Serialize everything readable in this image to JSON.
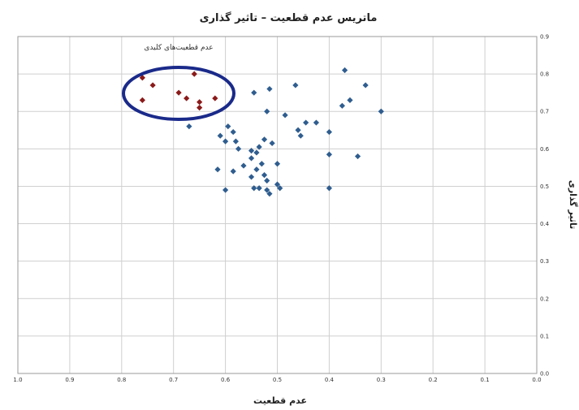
{
  "chart_data": {
    "type": "scatter",
    "title": "ماتریس عدم قطعیت – تاثیر گذاری",
    "xlabel": "عدم قطعیت",
    "ylabel": "تاثیر گذاری",
    "xlim": [
      1.0,
      0.0
    ],
    "ylim": [
      0.0,
      0.9
    ],
    "x_reversed": true,
    "grid": true,
    "y_axis_side": "right",
    "xticks": [
      "1.0",
      "0.9",
      "0.8",
      "0.7",
      "0.6",
      "0.5",
      "0.4",
      "0.3",
      "0.2",
      "0.1",
      "0.0"
    ],
    "yticks": [
      "0.0",
      "0.1",
      "0.2",
      "0.3",
      "0.4",
      "0.5",
      "0.6",
      "0.7",
      "0.8",
      "0.9"
    ],
    "annotation": {
      "text": "عدم قطعیت‌های کلیدی",
      "shape": "ellipse",
      "color": "#1a2a8a"
    },
    "series": [
      {
        "color": "#8b1a1a",
        "marker": "diamond",
        "points": [
          {
            "x": 0.76,
            "y": 0.79
          },
          {
            "x": 0.74,
            "y": 0.77
          },
          {
            "x": 0.76,
            "y": 0.73
          },
          {
            "x": 0.69,
            "y": 0.75
          },
          {
            "x": 0.675,
            "y": 0.735
          },
          {
            "x": 0.66,
            "y": 0.8
          },
          {
            "x": 0.65,
            "y": 0.725
          },
          {
            "x": 0.65,
            "y": 0.71
          },
          {
            "x": 0.62,
            "y": 0.735
          }
        ]
      },
      {
        "color": "#2f5d8f",
        "marker": "diamond",
        "points": [
          {
            "x": 0.67,
            "y": 0.66
          },
          {
            "x": 0.61,
            "y": 0.635
          },
          {
            "x": 0.6,
            "y": 0.62
          },
          {
            "x": 0.595,
            "y": 0.66
          },
          {
            "x": 0.585,
            "y": 0.645
          },
          {
            "x": 0.58,
            "y": 0.62
          },
          {
            "x": 0.575,
            "y": 0.6
          },
          {
            "x": 0.55,
            "y": 0.595
          },
          {
            "x": 0.55,
            "y": 0.575
          },
          {
            "x": 0.54,
            "y": 0.59
          },
          {
            "x": 0.525,
            "y": 0.625
          },
          {
            "x": 0.535,
            "y": 0.605
          },
          {
            "x": 0.51,
            "y": 0.615
          },
          {
            "x": 0.52,
            "y": 0.7
          },
          {
            "x": 0.545,
            "y": 0.75
          },
          {
            "x": 0.515,
            "y": 0.76
          },
          {
            "x": 0.485,
            "y": 0.69
          },
          {
            "x": 0.465,
            "y": 0.77
          },
          {
            "x": 0.46,
            "y": 0.65
          },
          {
            "x": 0.455,
            "y": 0.635
          },
          {
            "x": 0.445,
            "y": 0.67
          },
          {
            "x": 0.425,
            "y": 0.67
          },
          {
            "x": 0.4,
            "y": 0.645
          },
          {
            "x": 0.4,
            "y": 0.585
          },
          {
            "x": 0.615,
            "y": 0.545
          },
          {
            "x": 0.585,
            "y": 0.54
          },
          {
            "x": 0.565,
            "y": 0.555
          },
          {
            "x": 0.55,
            "y": 0.525
          },
          {
            "x": 0.54,
            "y": 0.545
          },
          {
            "x": 0.53,
            "y": 0.56
          },
          {
            "x": 0.525,
            "y": 0.53
          },
          {
            "x": 0.5,
            "y": 0.56
          },
          {
            "x": 0.52,
            "y": 0.515
          },
          {
            "x": 0.5,
            "y": 0.505
          },
          {
            "x": 0.495,
            "y": 0.495
          },
          {
            "x": 0.545,
            "y": 0.495
          },
          {
            "x": 0.535,
            "y": 0.495
          },
          {
            "x": 0.52,
            "y": 0.49
          },
          {
            "x": 0.515,
            "y": 0.48
          },
          {
            "x": 0.6,
            "y": 0.49
          },
          {
            "x": 0.4,
            "y": 0.495
          },
          {
            "x": 0.37,
            "y": 0.81
          },
          {
            "x": 0.33,
            "y": 0.77
          },
          {
            "x": 0.36,
            "y": 0.73
          },
          {
            "x": 0.375,
            "y": 0.715
          },
          {
            "x": 0.3,
            "y": 0.7
          },
          {
            "x": 0.345,
            "y": 0.58
          }
        ]
      }
    ]
  }
}
